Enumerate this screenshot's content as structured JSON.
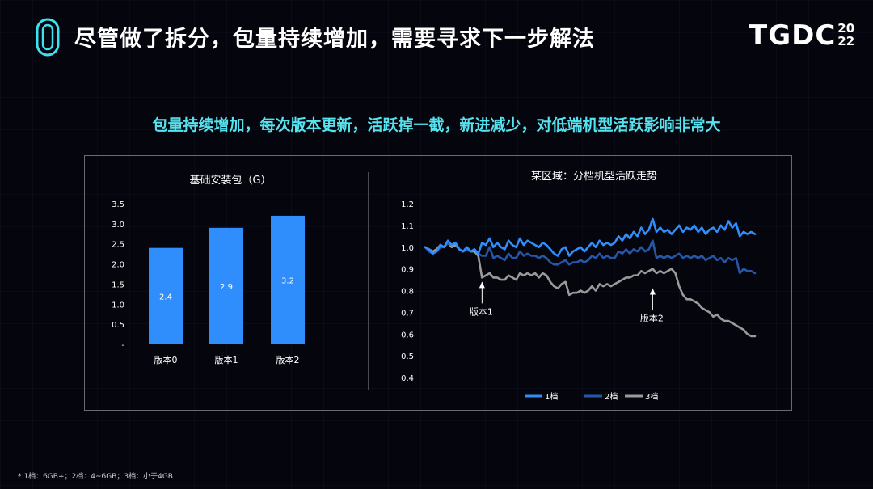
{
  "title": "尽管做了拆分，包量持续增加，需要寻求下一步解法",
  "brand": {
    "main": "TGDC",
    "year_top": "20",
    "year_bottom": "22"
  },
  "subtitle": "包量持续增加，每次版本更新，活跃掉一截，新进减少，对低端机型活跃影响非常大",
  "footnote": "* 1档：6GB+；2档：4~6GB；3档：小于4GB",
  "colors": {
    "accent": "#56e3f0",
    "bar": "#2f8efc",
    "tier1": "#2f8efc",
    "tier2": "#2557a8",
    "tier3": "#9a9a9a"
  },
  "chart_data": [
    {
      "type": "bar",
      "title": "基础安装包（G）",
      "categories": [
        "版本0",
        "版本1",
        "版本2"
      ],
      "values": [
        2.4,
        2.9,
        3.2
      ],
      "data_labels": [
        "2.4",
        "2.9",
        "3.2"
      ],
      "ylim": [
        0,
        3.5
      ],
      "yticks": [
        0,
        0.5,
        1.0,
        1.5,
        2.0,
        2.5,
        3.0,
        3.5
      ],
      "ytick_labels": [
        "-",
        "0.5",
        "1.0",
        "1.5",
        "2.0",
        "2.5",
        "3.0",
        "3.5"
      ],
      "grid": false
    },
    {
      "type": "line",
      "title": "某区域：分档机型活跃走势",
      "ylim": [
        0.4,
        1.2
      ],
      "yticks": [
        0.4,
        0.5,
        0.6,
        0.7,
        0.8,
        0.9,
        1.0,
        1.1,
        1.2
      ],
      "ytick_labels": [
        "0.4",
        "0.5",
        "0.6",
        "0.7",
        "0.8",
        "0.9",
        "1.0",
        "1.1",
        "1.2"
      ],
      "legend_position": "bottom",
      "grid": false,
      "annotations": [
        {
          "text": "版本1",
          "x": 15,
          "y": 0.86
        },
        {
          "text": "版本2",
          "x": 60,
          "y": 0.83
        }
      ],
      "series": [
        {
          "name": "1档",
          "values": [
            1.0,
            0.99,
            0.97,
            0.98,
            1.01,
            1.0,
            1.03,
            1.01,
            1.02,
            0.99,
            0.98,
            1.0,
            0.98,
            0.99,
            0.97,
            1.02,
            1.01,
            1.04,
            1.0,
            1.02,
            1.0,
            0.99,
            1.03,
            1.01,
            1.0,
            1.04,
            1.01,
            1.03,
            1.02,
            1.01,
            1.0,
            1.02,
            1.01,
            0.99,
            0.97,
            0.96,
            0.99,
            1.0,
            0.96,
            0.98,
            0.99,
            1.0,
            0.98,
            1.0,
            1.02,
            1.0,
            1.03,
            1.01,
            1.02,
            1.01,
            1.02,
            1.05,
            1.03,
            1.06,
            1.04,
            1.07,
            1.05,
            1.09,
            1.06,
            1.08,
            1.13,
            1.07,
            1.09,
            1.07,
            1.08,
            1.06,
            1.08,
            1.1,
            1.07,
            1.09,
            1.08,
            1.1,
            1.07,
            1.09,
            1.06,
            1.08,
            1.09,
            1.07,
            1.1,
            1.08,
            1.12,
            1.09,
            1.11,
            1.05,
            1.07,
            1.06,
            1.07,
            1.06
          ]
        },
        {
          "name": "2档",
          "values": [
            1.0,
            0.98,
            0.97,
            0.98,
            1.0,
            1.0,
            1.02,
            1.01,
            1.02,
            0.99,
            0.98,
            0.99,
            0.98,
            0.99,
            0.97,
            0.96,
            0.96,
            1.0,
            0.95,
            0.96,
            0.95,
            0.94,
            0.97,
            0.95,
            0.95,
            0.98,
            0.96,
            0.97,
            0.96,
            0.96,
            0.95,
            0.96,
            0.95,
            0.93,
            0.92,
            0.92,
            0.93,
            0.94,
            0.92,
            0.93,
            0.93,
            0.94,
            0.93,
            0.94,
            0.96,
            0.95,
            0.97,
            0.95,
            0.96,
            0.95,
            0.95,
            0.98,
            0.97,
            0.99,
            0.97,
            0.99,
            0.98,
            1.0,
            0.98,
            0.99,
            1.03,
            0.95,
            0.96,
            0.95,
            0.96,
            0.95,
            0.96,
            0.97,
            0.95,
            0.96,
            0.95,
            0.96,
            0.95,
            0.96,
            0.94,
            0.95,
            0.96,
            0.94,
            0.95,
            0.93,
            0.95,
            0.94,
            0.95,
            0.88,
            0.9,
            0.89,
            0.89,
            0.88
          ]
        },
        {
          "name": "3档",
          "values": [
            1.0,
            0.99,
            0.98,
            0.99,
            1.01,
            1.0,
            1.02,
            1.0,
            1.01,
            0.99,
            0.98,
            0.99,
            0.98,
            0.98,
            0.96,
            0.86,
            0.87,
            0.88,
            0.86,
            0.86,
            0.85,
            0.85,
            0.87,
            0.86,
            0.85,
            0.88,
            0.87,
            0.88,
            0.87,
            0.88,
            0.86,
            0.88,
            0.87,
            0.84,
            0.82,
            0.81,
            0.83,
            0.84,
            0.78,
            0.79,
            0.79,
            0.8,
            0.79,
            0.8,
            0.82,
            0.8,
            0.83,
            0.82,
            0.83,
            0.82,
            0.83,
            0.84,
            0.85,
            0.86,
            0.86,
            0.87,
            0.87,
            0.89,
            0.88,
            0.89,
            0.9,
            0.88,
            0.89,
            0.88,
            0.89,
            0.9,
            0.88,
            0.82,
            0.78,
            0.76,
            0.76,
            0.75,
            0.74,
            0.72,
            0.71,
            0.7,
            0.68,
            0.69,
            0.67,
            0.66,
            0.66,
            0.65,
            0.64,
            0.63,
            0.62,
            0.6,
            0.59,
            0.59
          ]
        }
      ]
    }
  ]
}
